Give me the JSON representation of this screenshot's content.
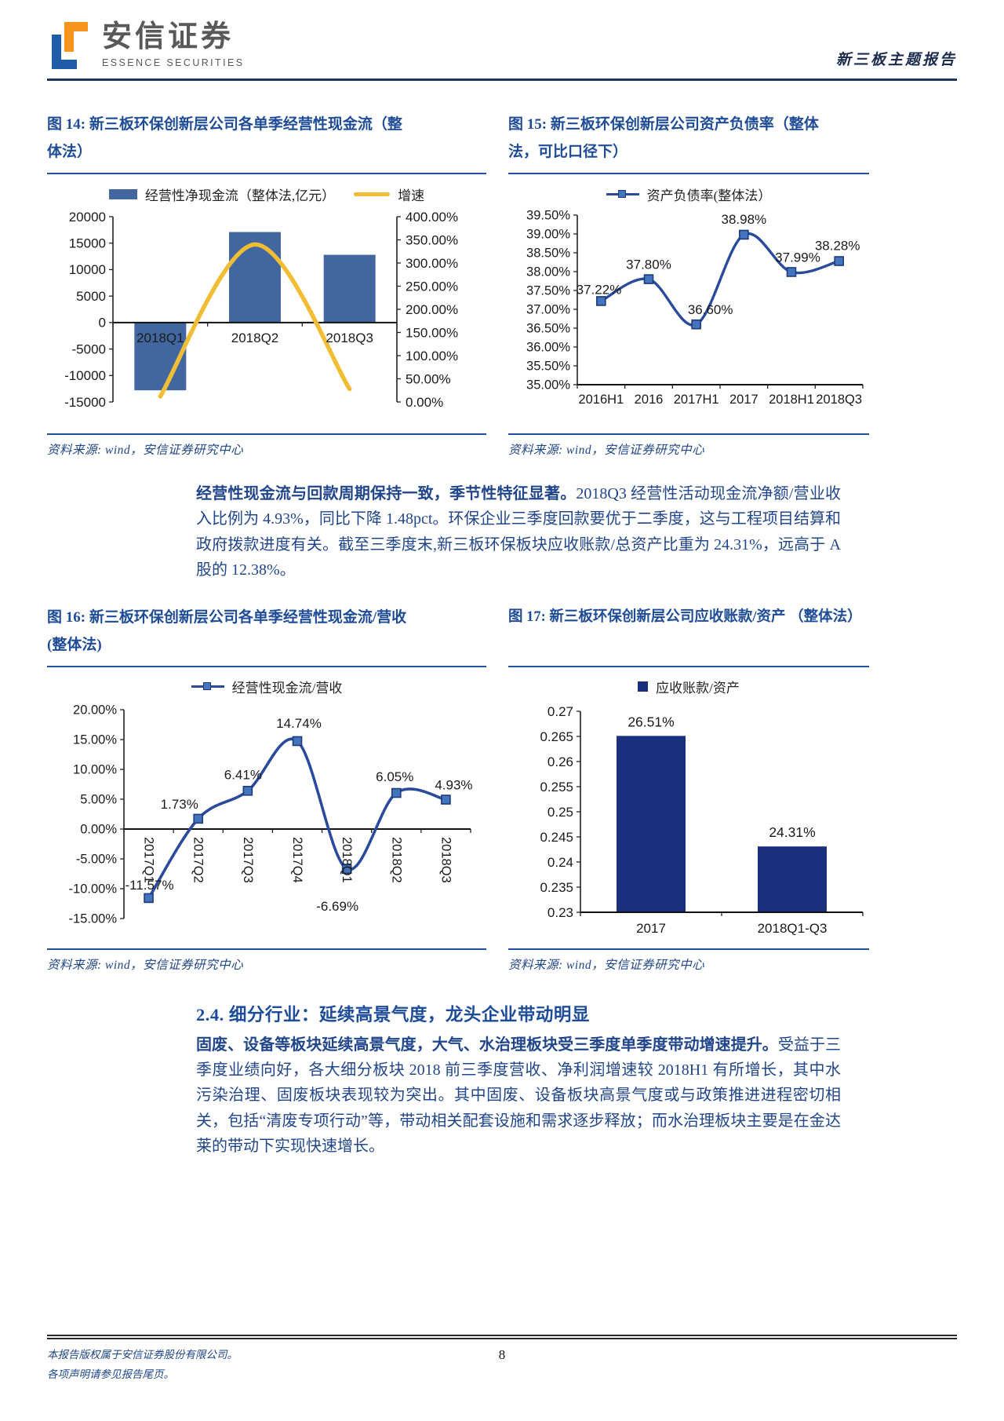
{
  "header": {
    "brand_cn": "安信证券",
    "brand_en": "ESSENCE SECURITIES",
    "report_type": "新三板主题报告"
  },
  "figures": {
    "fig14": {
      "title": "图 14: 新三板环保创新层公司各单季经营性现金流（整体法）",
      "source": "资料来源: wind，安信证券研究中心"
    },
    "fig15": {
      "title": "图 15: 新三板环保创新层公司资产负债率（整体法，可比口径下）",
      "source": "资料来源: wind，安信证券研究中心"
    },
    "fig16": {
      "title": "图 16: 新三板环保创新层公司各单季经营性现金流/营收(整体法)",
      "source": "资料来源: wind，安信证券研究中心"
    },
    "fig17": {
      "title": "图 17: 新三板环保创新层公司应收账款/资产 （整体法）",
      "source": "资料来源: wind，安信证券研究中心"
    }
  },
  "paragraph1": {
    "lead": "经营性现金流与回款周期保持一致，季节性特征显著。",
    "rest": "2018Q3 经营性活动现金流净额/营业收入比例为 4.93%，同比下降 1.48pct。环保企业三季度回款要优于二季度，这与工程项目结算和政府拨款进度有关。截至三季度末,新三板环保板块应收账款/总资产比重为 24.31%，远高于 A 股的 12.38%。"
  },
  "section": {
    "heading": "2.4. 细分行业：延续高景气度，龙头企业带动明显",
    "lead": "固废、设备等板块延续高景气度，大气、水治理板块受三季度单季度带动增速提升。",
    "rest": "受益于三季度业绩向好，各大细分板块 2018 前三季度营收、净利润增速较 2018H1 有所增长，其中水污染治理、固废板块表现较为突出。其中固废、设备板块高景气度或与政策推进进程密切相关，包括“清废专项行动”等，带动相关配套设施和需求逐步释放；而水治理板块主要是在金达莱的带动下实现快速增长。"
  },
  "footer": {
    "line1": "本报告版权属于安信证券股份有限公司。",
    "line2": "各项声明请参见报告尾页。",
    "page_number": "8"
  },
  "chart_data": [
    {
      "type": "bar",
      "title": "新三板环保创新层公司各单季经营性现金流（整体法）",
      "categories": [
        "2018Q1",
        "2018Q2",
        "2018Q3"
      ],
      "series": [
        {
          "name": "经营性净现金流（整体法,亿元）",
          "type": "bar",
          "axis": "left",
          "color": "#42669f",
          "values": [
            -12800,
            17100,
            12800
          ]
        },
        {
          "name": "增速",
          "type": "line",
          "axis": "right",
          "color": "#f0bd35",
          "smooth": true,
          "values": [
            12,
            340,
            28
          ]
        }
      ],
      "left_axis": {
        "min": -15000,
        "max": 20000,
        "ticks": [
          "20000",
          "15000",
          "10000",
          "5000",
          "0",
          "-5000",
          "-10000",
          "-15000"
        ]
      },
      "right_axis": {
        "min": 0,
        "max": 400,
        "ticks": [
          "400.00%",
          "350.00%",
          "300.00%",
          "250.00%",
          "200.00%",
          "150.00%",
          "100.00%",
          "50.00%",
          "0.00%"
        ]
      },
      "grid": false,
      "legend_position": "top"
    },
    {
      "type": "line",
      "title": "新三板环保创新层公司资产负债率（整体法，可比口径下）",
      "categories": [
        "2016H1",
        "2016",
        "2017H1",
        "2017",
        "2018H1",
        "2018Q3"
      ],
      "series": [
        {
          "name": "资产负债率(整体法）",
          "type": "line",
          "axis": "left",
          "color": "#2a4a9b",
          "smooth": true,
          "values": [
            37.22,
            37.8,
            36.6,
            38.98,
            37.99,
            38.28
          ],
          "labels": [
            "37.22%",
            "37.80%",
            "36.60%",
            "38.98%",
            "37.99%",
            "38.28%"
          ],
          "label_offsets": [
            [
              26,
              -9,
              "end"
            ],
            [
              0,
              -13,
              "middle"
            ],
            [
              18,
              -13,
              "middle"
            ],
            [
              0,
              -14,
              "middle"
            ],
            [
              8,
              -13,
              "middle"
            ],
            [
              -2,
              -14,
              "middle"
            ]
          ]
        }
      ],
      "left_axis": {
        "min": 35.0,
        "max": 39.5,
        "ticks": [
          "39.50%",
          "39.00%",
          "38.50%",
          "38.00%",
          "37.50%",
          "37.00%",
          "36.50%",
          "36.00%",
          "35.50%",
          "35.00%"
        ]
      },
      "grid": false,
      "legend_position": "top"
    },
    {
      "type": "line",
      "title": "新三板环保创新层公司各单季经营性现金流/营收(整体法)",
      "categories": [
        "2017Q1",
        "2017Q2",
        "2017Q3",
        "2017Q4",
        "2018Q1",
        "2018Q2",
        "2018Q3"
      ],
      "series": [
        {
          "name": "经营性现金流/营收",
          "type": "line",
          "axis": "left",
          "color": "#2a4a9b",
          "smooth": true,
          "values": [
            -11.57,
            1.73,
            6.41,
            14.74,
            -6.69,
            6.05,
            4.93
          ],
          "labels": [
            "-11.57%",
            "1.73%",
            "6.41%",
            "14.74%",
            "-6.69%",
            "6.05%",
            "4.93%"
          ],
          "label_offsets": [
            [
              32,
              -11,
              "end"
            ],
            [
              -24,
              -13,
              "middle"
            ],
            [
              -6,
              -15,
              "middle"
            ],
            [
              2,
              -17,
              "middle"
            ],
            [
              -12,
              53,
              "middle"
            ],
            [
              -2,
              -15,
              "middle"
            ],
            [
              10,
              -13,
              "middle"
            ]
          ]
        }
      ],
      "left_axis": {
        "min": -15,
        "max": 20,
        "ticks": [
          "20.00%",
          "15.00%",
          "10.00%",
          "5.00%",
          "0.00%",
          "-5.00%",
          "-10.00%",
          "-15.00%"
        ]
      },
      "grid": false,
      "legend_position": "top",
      "x_labels_rotated": true
    },
    {
      "type": "bar",
      "title": "新三板环保创新层公司应收账款/资产（整体法）",
      "categories": [
        "2017",
        "2018Q1-Q3"
      ],
      "series": [
        {
          "name": "应收账款/资产",
          "type": "bar",
          "axis": "left",
          "color": "#18307e",
          "values": [
            0.2651,
            0.2431
          ],
          "labels": [
            "26.51%",
            "24.31%"
          ],
          "label_offsets": [
            [
              0,
              -12,
              "middle"
            ],
            [
              0,
              -12,
              "middle"
            ]
          ]
        }
      ],
      "left_axis": {
        "min": 0.23,
        "max": 0.27,
        "ticks": [
          "0.27",
          "0.265",
          "0.26",
          "0.255",
          "0.25",
          "0.245",
          "0.24",
          "0.235",
          "0.23"
        ]
      },
      "grid": false,
      "legend_position": "top"
    }
  ]
}
